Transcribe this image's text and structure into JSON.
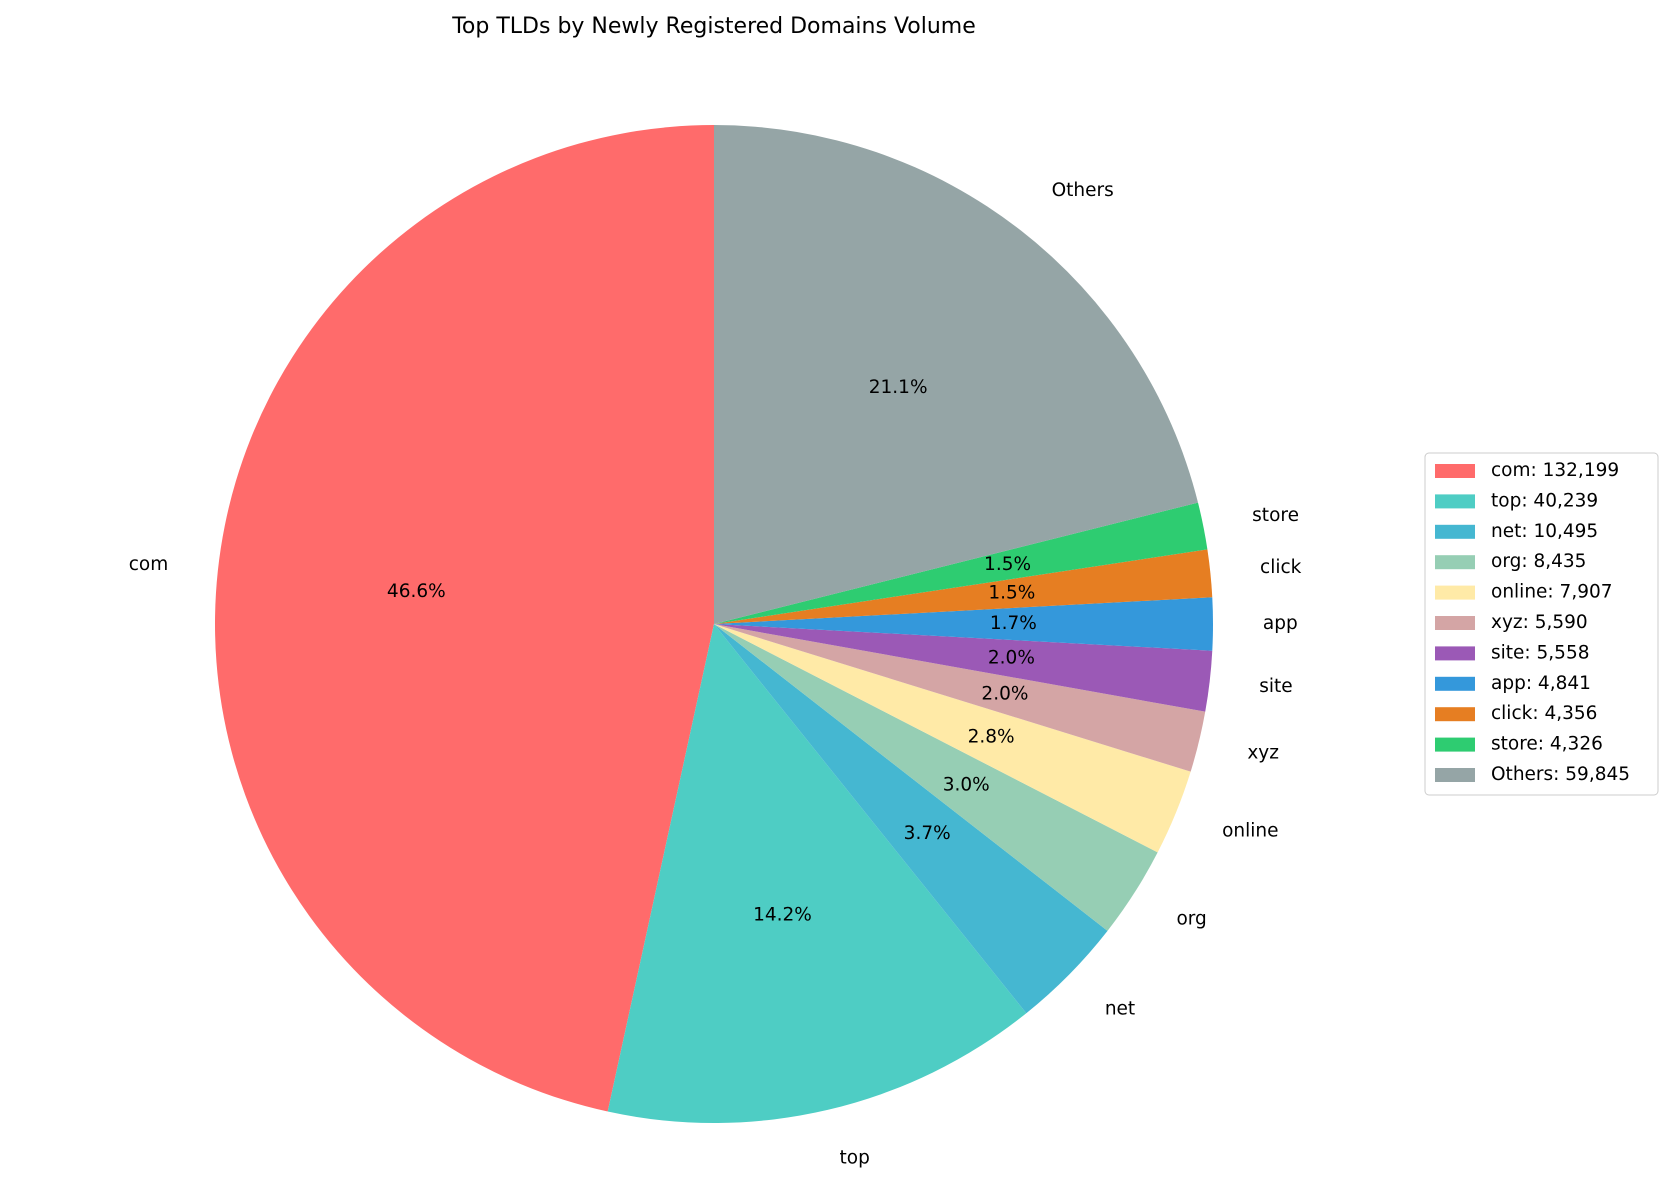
{
  "chart_data": {
    "type": "pie",
    "title": "Top TLDs by Newly Registered Domains Volume",
    "start_angle_deg": 90,
    "direction": "counterclockwise",
    "legend_position": "right",
    "slices": [
      {
        "label": "com",
        "value": 132199,
        "pct": "46.6%",
        "legend": "com: 132,199",
        "color": "#ff6b6b"
      },
      {
        "label": "top",
        "value": 40239,
        "pct": "14.2%",
        "legend": "top: 40,239",
        "color": "#4ecdc4"
      },
      {
        "label": "net",
        "value": 10495,
        "pct": "3.7%",
        "legend": "net: 10,495",
        "color": "#45b7d1"
      },
      {
        "label": "org",
        "value": 8435,
        "pct": "3.0%",
        "legend": "org: 8,435",
        "color": "#96ceb4"
      },
      {
        "label": "online",
        "value": 7907,
        "pct": "2.8%",
        "legend": "online: 7,907",
        "color": "#ffeaa7"
      },
      {
        "label": "xyz",
        "value": 5590,
        "pct": "2.0%",
        "legend": "xyz: 5,590",
        "color": "#d4a5a5"
      },
      {
        "label": "site",
        "value": 5558,
        "pct": "2.0%",
        "legend": "site: 5,558",
        "color": "#9b59b6"
      },
      {
        "label": "app",
        "value": 4841,
        "pct": "1.7%",
        "legend": "app: 4,841",
        "color": "#3498db"
      },
      {
        "label": "click",
        "value": 4356,
        "pct": "1.5%",
        "legend": "click: 4,356",
        "color": "#e67e22"
      },
      {
        "label": "store",
        "value": 4326,
        "pct": "1.5%",
        "legend": "store: 4,326",
        "color": "#2ecc71"
      },
      {
        "label": "Others",
        "value": 59845,
        "pct": "21.1%",
        "legend": "Others: 59,845",
        "color": "#95a5a6"
      }
    ]
  }
}
